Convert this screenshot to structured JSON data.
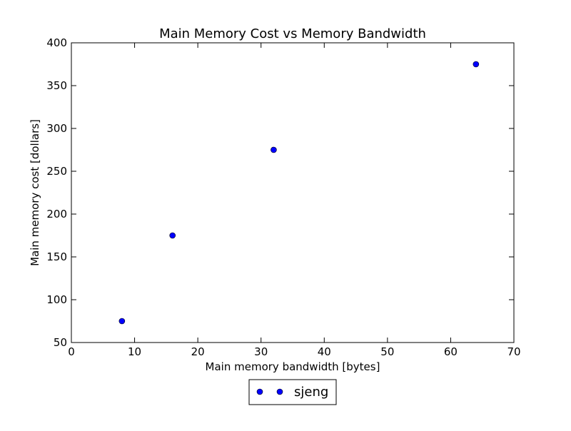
{
  "chart_data": {
    "type": "scatter",
    "title": "Main Memory Cost vs Memory Bandwidth",
    "xlabel": "Main memory bandwidth [bytes]",
    "ylabel": "Main memory cost [dollars]",
    "xlim": [
      0,
      70
    ],
    "ylim": [
      50,
      400
    ],
    "x_ticks": [
      0,
      10,
      20,
      30,
      40,
      50,
      60,
      70
    ],
    "y_ticks": [
      50,
      100,
      150,
      200,
      250,
      300,
      350,
      400
    ],
    "grid": false,
    "legend_position": "bottom-center",
    "series": [
      {
        "name": "sjeng",
        "color": "#0000ff",
        "marker": "circle",
        "x": [
          8,
          16,
          32,
          64
        ],
        "y": [
          75,
          175,
          275,
          375
        ]
      }
    ]
  }
}
